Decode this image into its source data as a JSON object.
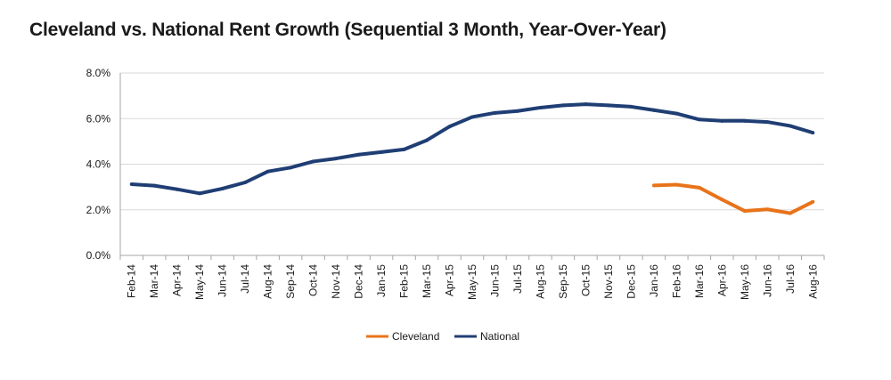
{
  "chart_data": {
    "type": "line",
    "title": "Cleveland vs. National Rent Growth (Sequential 3 Month, Year-Over-Year)",
    "xlabel": "",
    "ylabel": "",
    "ylim": [
      0,
      8
    ],
    "y_ticks": [
      "0.0%",
      "2.0%",
      "4.0%",
      "6.0%",
      "8.0%"
    ],
    "grid": "horizontal",
    "legend_position": "bottom-center",
    "categories": [
      "Feb-14",
      "Mar-14",
      "Apr-14",
      "May-14",
      "Jun-14",
      "Jul-14",
      "Aug-14",
      "Sep-14",
      "Oct-14",
      "Nov-14",
      "Dec-14",
      "Jan-15",
      "Feb-15",
      "Mar-15",
      "Apr-15",
      "May-15",
      "Jun-15",
      "Jul-15",
      "Aug-15",
      "Sep-15",
      "Oct-15",
      "Nov-15",
      "Dec-15",
      "Jan-16",
      "Feb-16",
      "Mar-16",
      "Apr-16",
      "May-16",
      "Jun-16",
      "Jul-16",
      "Aug-16"
    ],
    "series": [
      {
        "name": "Cleveland",
        "color": "#E8731A",
        "values": [
          null,
          null,
          null,
          null,
          null,
          null,
          null,
          null,
          null,
          null,
          null,
          null,
          null,
          null,
          null,
          null,
          null,
          null,
          null,
          null,
          null,
          null,
          null,
          3.07,
          3.1,
          2.97,
          2.45,
          1.95,
          2.02,
          1.85,
          2.35
        ]
      },
      {
        "name": "National",
        "color": "#1F3E74",
        "values": [
          3.12,
          3.06,
          2.9,
          2.72,
          2.93,
          3.2,
          3.68,
          3.85,
          4.12,
          4.25,
          4.42,
          4.53,
          4.65,
          5.05,
          5.65,
          6.07,
          6.25,
          6.33,
          6.48,
          6.58,
          6.63,
          6.58,
          6.52,
          6.37,
          6.22,
          5.96,
          5.9,
          5.9,
          5.85,
          5.68,
          5.38
        ]
      }
    ]
  }
}
